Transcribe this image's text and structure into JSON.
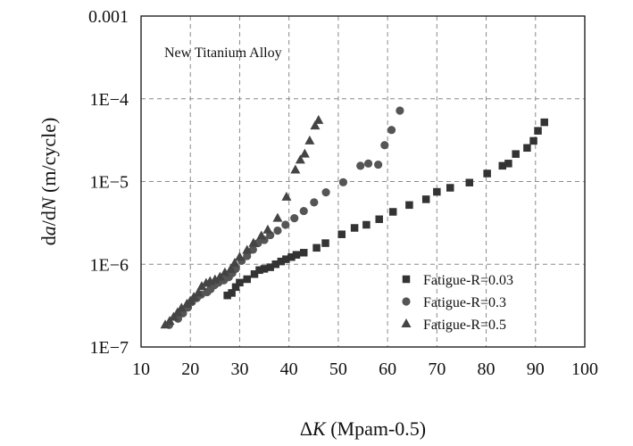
{
  "chart_data": {
    "type": "scatter",
    "title": "",
    "annotation": "New Titanium Alloy",
    "xlabel": "ΔK (Mpam-0.5)",
    "xlabel_symbol": "Δ",
    "xlabel_var": "K",
    "xlabel_unit": " (Mpam-0.5)",
    "ylabel": "da/dN (m/cycle)",
    "ylabel_prefix": "d",
    "ylabel_var_a": "a",
    "ylabel_mid": "/d",
    "ylabel_var_n": "N",
    "ylabel_unit": " (m/cycle)",
    "xlim": [
      10,
      100
    ],
    "ylim": [
      1e-07,
      0.001
    ],
    "yscale": "log",
    "grid": true,
    "legend_position": "lower-right",
    "x_ticks": [
      "10",
      "20",
      "30",
      "40",
      "50",
      "60",
      "70",
      "80",
      "90",
      "100"
    ],
    "y_ticks": [
      "1E−7",
      "1E−6",
      "1E−5",
      "1E−4",
      "0.001"
    ],
    "series": [
      {
        "name": "Fatigue-R=0.03",
        "marker": "square",
        "color": "#333333",
        "x": [
          27.5,
          28.4,
          29.2,
          30.0,
          31.5,
          33.0,
          34.0,
          35.0,
          36.2,
          37.3,
          38.4,
          39.4,
          40.5,
          41.5,
          43.0,
          45.6,
          47.4,
          50.7,
          53.3,
          55.7,
          58.3,
          61.1,
          64.4,
          67.8,
          70.0,
          72.7,
          76.6,
          80.2,
          83.3,
          84.5,
          86.0,
          88.3,
          89.6,
          90.5,
          91.8
        ],
        "y": [
          4.2e-07,
          4.5e-07,
          5.3e-07,
          6e-07,
          6.6e-07,
          7.6e-07,
          8.5e-07,
          8.8e-07,
          9.2e-07,
          1e-06,
          1.08e-06,
          1.15e-06,
          1.22e-06,
          1.3e-06,
          1.38e-06,
          1.58e-06,
          1.8e-06,
          2.3e-06,
          2.75e-06,
          3e-06,
          3.5e-06,
          4.3e-06,
          5.2e-06,
          6.1e-06,
          7.5e-06,
          8.4e-06,
          9.7e-06,
          1.25e-05,
          1.55e-05,
          1.65e-05,
          2.15e-05,
          2.55e-05,
          3.1e-05,
          4.1e-05,
          5.2e-05
        ]
      },
      {
        "name": "Fatigue-R=0.3",
        "marker": "circle",
        "color": "#555555",
        "x": [
          15.7,
          17.5,
          18.5,
          19.5,
          20.3,
          21.3,
          22.2,
          23.4,
          24.1,
          24.9,
          25.7,
          26.8,
          27.8,
          28.5,
          29.2,
          30.4,
          31.5,
          32.7,
          33.7,
          35.0,
          36.2,
          37.7,
          39.3,
          41.1,
          43.0,
          45.1,
          47.5,
          51.0,
          54.5,
          56.1,
          58.1,
          59.4,
          60.8,
          62.5
        ],
        "y": [
          1.85e-07,
          2.2e-07,
          2.55e-07,
          3e-07,
          3.5e-07,
          3.9e-07,
          4.3e-07,
          4.6e-07,
          5e-07,
          5.6e-07,
          6e-07,
          6.4e-07,
          7e-07,
          7.8e-07,
          8.8e-07,
          1.1e-06,
          1.26e-06,
          1.5e-06,
          1.8e-06,
          1.97e-06,
          2.25e-06,
          2.55e-06,
          3e-06,
          3.6e-06,
          4.4e-06,
          5.6e-06,
          7.4e-06,
          9.8e-06,
          1.55e-05,
          1.65e-05,
          1.6e-05,
          2.75e-05,
          4.2e-05,
          7.2e-05
        ]
      },
      {
        "name": "Fatigue-R=0.5",
        "marker": "triangle",
        "color": "#444444",
        "x": [
          14.9,
          15.8,
          16.6,
          17.4,
          18.2,
          19.3,
          20.0,
          20.7,
          21.6,
          22.3,
          23.2,
          24.0,
          25.0,
          26.0,
          27.0,
          28.2,
          29.0,
          30.0,
          31.5,
          32.8,
          34.4,
          35.7,
          37.7,
          39.5,
          41.3,
          42.3,
          43.2,
          44.2,
          45.3,
          46.0
        ],
        "y": [
          1.85e-07,
          2.05e-07,
          2.3e-07,
          2.6e-07,
          2.95e-07,
          3.3e-07,
          3.6e-07,
          4e-07,
          4.5e-07,
          5.4e-07,
          5.9e-07,
          6.2e-07,
          6.5e-07,
          7e-07,
          7.9e-07,
          8.7e-07,
          1.03e-06,
          1.22e-06,
          1.48e-06,
          1.8e-06,
          2.2e-06,
          2.6e-06,
          3.6e-06,
          6.5e-06,
          1.38e-05,
          1.82e-05,
          2.15e-05,
          3.1e-05,
          4.7e-05,
          5.5e-05
        ]
      }
    ]
  }
}
